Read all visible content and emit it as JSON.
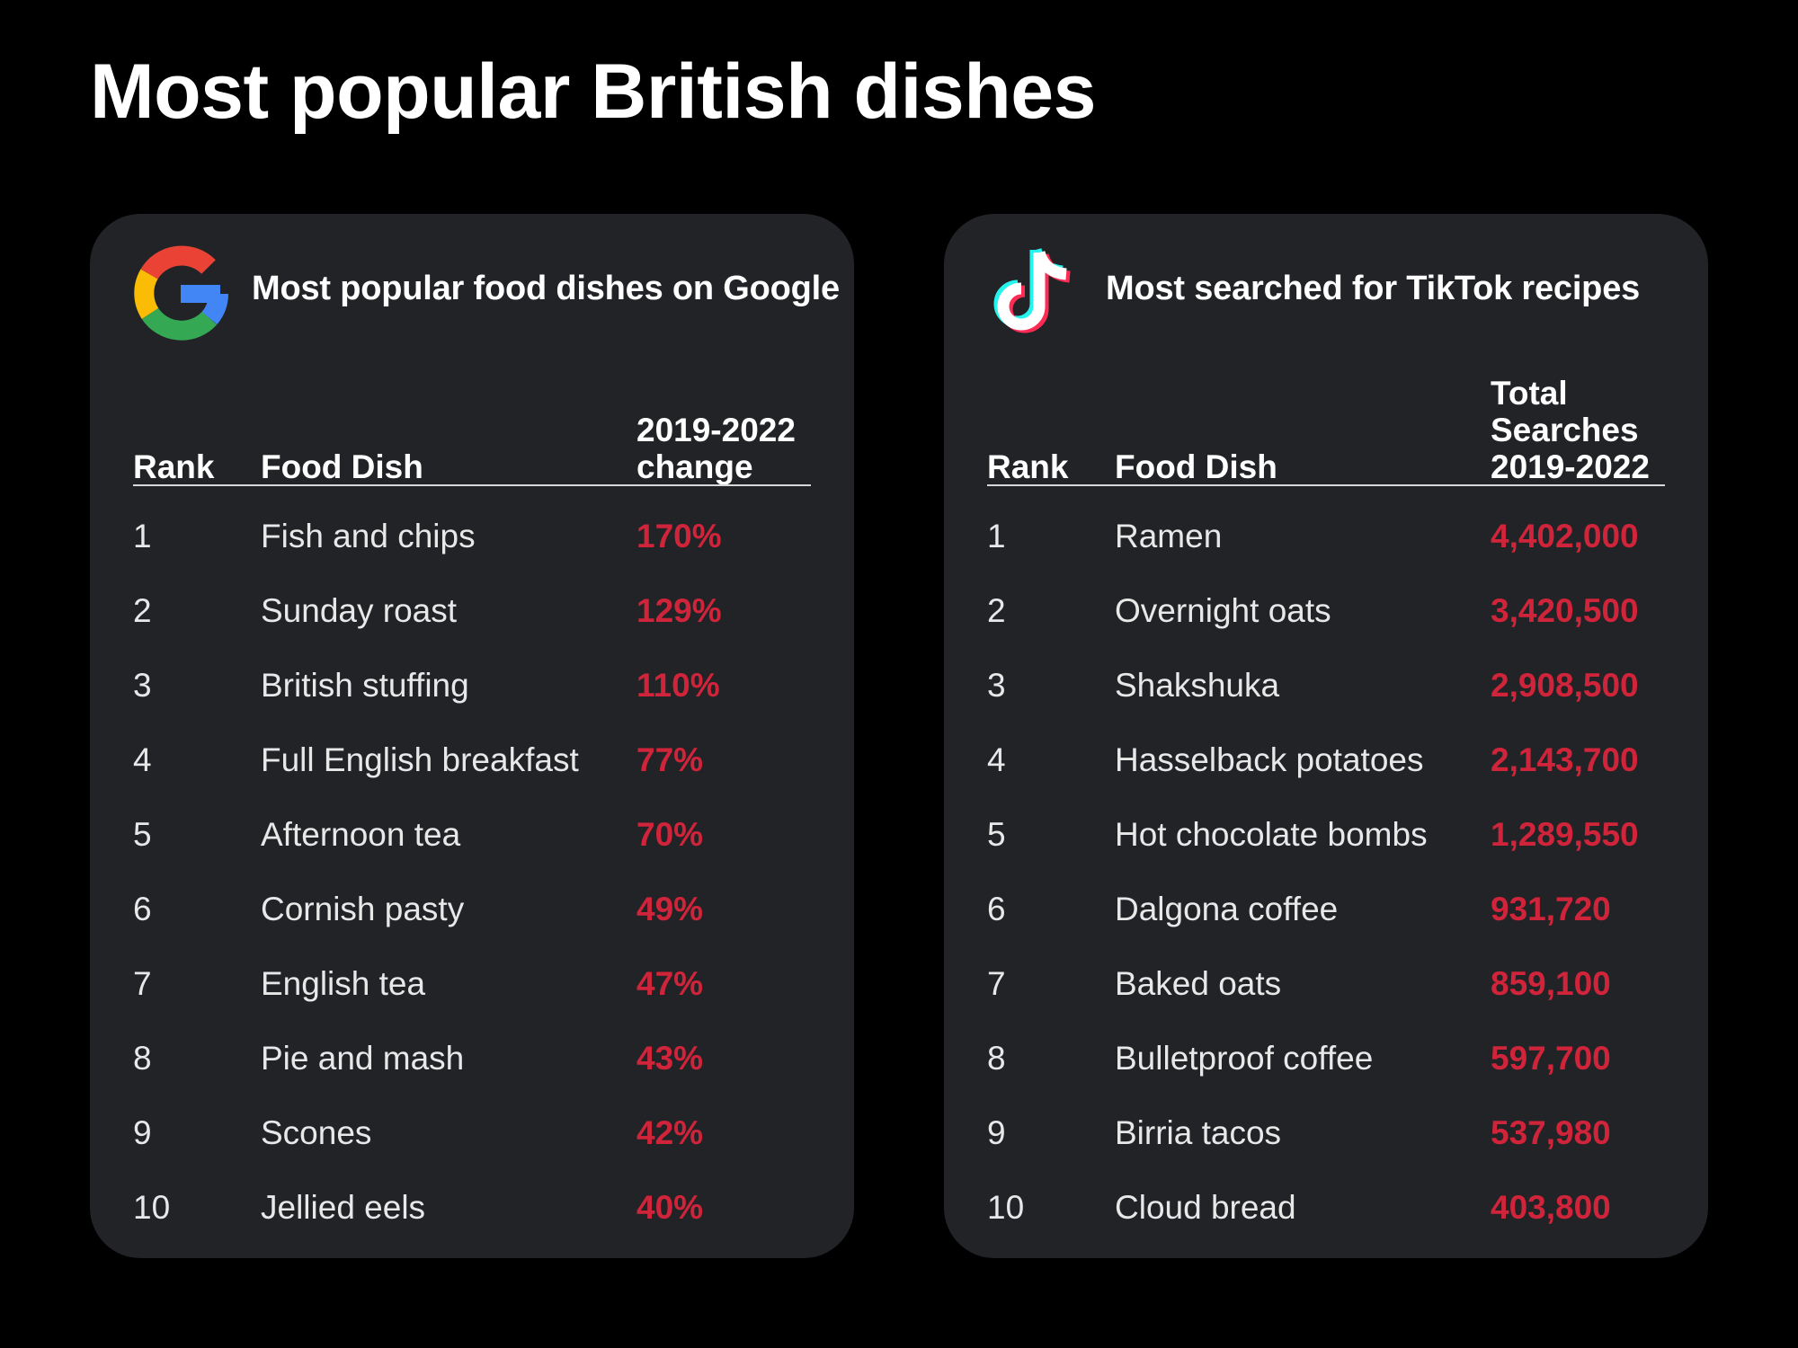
{
  "title": "Most popular British dishes",
  "colors": {
    "background": "#000000",
    "card": "#222327",
    "accent": "#d0243a",
    "text": "#ffffff"
  },
  "google": {
    "icon": "google-logo-icon",
    "heading": "Most popular food dishes on Google",
    "columns": {
      "rank": "Rank",
      "dish": "Food Dish",
      "value_line1": "2019-2022",
      "value_line2": "change"
    },
    "rows": [
      {
        "rank": "1",
        "dish": "Fish and chips",
        "value": "170%"
      },
      {
        "rank": "2",
        "dish": "Sunday roast",
        "value": "129%"
      },
      {
        "rank": "3",
        "dish": "British stuffing",
        "value": "110%"
      },
      {
        "rank": "4",
        "dish": "Full English breakfast",
        "value": "77%"
      },
      {
        "rank": "5",
        "dish": "Afternoon tea",
        "value": "70%"
      },
      {
        "rank": "6",
        "dish": "Cornish pasty",
        "value": "49%"
      },
      {
        "rank": "7",
        "dish": "English tea",
        "value": "47%"
      },
      {
        "rank": "8",
        "dish": "Pie and mash",
        "value": "43%"
      },
      {
        "rank": "9",
        "dish": "Scones",
        "value": "42%"
      },
      {
        "rank": "10",
        "dish": "Jellied eels",
        "value": "40%"
      }
    ]
  },
  "tiktok": {
    "icon": "tiktok-logo-icon",
    "heading": "Most searched for TikTok recipes",
    "columns": {
      "rank": "Rank",
      "dish": "Food Dish",
      "value_line1": "Total",
      "value_line2": "Searches",
      "value_line3": "2019-2022"
    },
    "rows": [
      {
        "rank": "1",
        "dish": "Ramen",
        "value": "4,402,000"
      },
      {
        "rank": "2",
        "dish": "Overnight oats",
        "value": "3,420,500"
      },
      {
        "rank": "3",
        "dish": "Shakshuka",
        "value": "2,908,500"
      },
      {
        "rank": "4",
        "dish": "Hasselback potatoes",
        "value": "2,143,700"
      },
      {
        "rank": "5",
        "dish": "Hot chocolate bombs",
        "value": "1,289,550"
      },
      {
        "rank": "6",
        "dish": "Dalgona coffee",
        "value": "931,720"
      },
      {
        "rank": "7",
        "dish": "Baked oats",
        "value": "859,100"
      },
      {
        "rank": "8",
        "dish": "Bulletproof coffee",
        "value": "597,700"
      },
      {
        "rank": "9",
        "dish": "Birria tacos",
        "value": "537,980"
      },
      {
        "rank": "10",
        "dish": "Cloud bread",
        "value": "403,800"
      }
    ]
  }
}
